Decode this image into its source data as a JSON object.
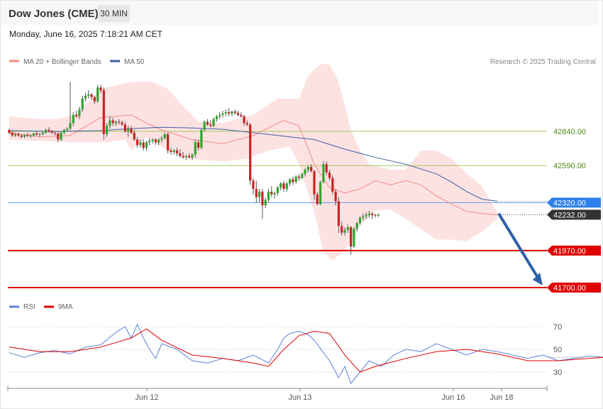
{
  "header": {
    "title": "Dow Jones (CME)",
    "interval": "30 MIN",
    "datetime": "Monday, June 16, 2025 7:18:21 AM CET"
  },
  "legend": [
    {
      "label": "MA 20 + Bollinger Bands",
      "color": "#f28b82"
    },
    {
      "label": "MA 50",
      "color": "#3b5fa8"
    }
  ],
  "copyright": "Research © 2025 Trading Central",
  "rsi_legend": [
    {
      "label": "RSI",
      "color": "#5b82d6"
    },
    {
      "label": "9MA",
      "color": "#e00000"
    }
  ],
  "chart_data": {
    "type": "candlestick",
    "price_ylim": [
      41680,
      43300
    ],
    "x_tick_labels": [
      {
        "label": "Jun 12",
        "index": 45
      },
      {
        "label": "Jun 13",
        "index": 95
      },
      {
        "label": "Jun 16",
        "index": 145
      },
      {
        "label": "Jun 18",
        "index": 161
      }
    ],
    "levels": [
      {
        "label": "42840.00",
        "value": 42840,
        "color": "#8dbd3a",
        "text_color": "#4e8a12",
        "style": "thin"
      },
      {
        "label": "42590.00",
        "value": 42590,
        "color": "#8dbd3a",
        "text_color": "#4e8a12",
        "style": "thin"
      },
      {
        "label": "42320.00",
        "value": 42320,
        "color": "#3d7fe0",
        "box": "#2f80ed",
        "style": "thin"
      },
      {
        "label": "42232.00",
        "value": 42232,
        "color": "#444444",
        "box": "#333333",
        "style": "dotted"
      },
      {
        "label": "41970.00",
        "value": 41970,
        "color": "#e00000",
        "box": "#e00000",
        "style": "thick"
      },
      {
        "label": "41700.00",
        "value": 41700,
        "color": "#e00000",
        "box": "#e00000",
        "style": "thick"
      }
    ],
    "projection": {
      "from_index": 159,
      "from": 42240,
      "to_index": 175,
      "to": 41700,
      "color": "#2f5fa8"
    },
    "ma50": [
      [
        0,
        42845
      ],
      [
        15,
        42840
      ],
      [
        30,
        42845
      ],
      [
        40,
        42860
      ],
      [
        50,
        42870
      ],
      [
        60,
        42865
      ],
      [
        70,
        42855
      ],
      [
        80,
        42830
      ],
      [
        90,
        42805
      ],
      [
        100,
        42780
      ],
      [
        110,
        42710
      ],
      [
        120,
        42650
      ],
      [
        130,
        42600
      ],
      [
        140,
        42530
      ],
      [
        145,
        42470
      ],
      [
        150,
        42400
      ],
      [
        155,
        42345
      ],
      [
        160,
        42330
      ]
    ],
    "ma20": [
      [
        0,
        42830
      ],
      [
        10,
        42800
      ],
      [
        20,
        42810
      ],
      [
        30,
        42940
      ],
      [
        40,
        42960
      ],
      [
        45,
        42900
      ],
      [
        50,
        42850
      ],
      [
        60,
        42780
      ],
      [
        70,
        42750
      ],
      [
        80,
        42810
      ],
      [
        90,
        42920
      ],
      [
        95,
        42880
      ],
      [
        100,
        42600
      ],
      [
        105,
        42430
      ],
      [
        110,
        42390
      ],
      [
        115,
        42420
      ],
      [
        120,
        42480
      ],
      [
        125,
        42450
      ],
      [
        130,
        42480
      ],
      [
        135,
        42450
      ],
      [
        140,
        42370
      ],
      [
        145,
        42310
      ],
      [
        150,
        42255
      ],
      [
        155,
        42240
      ],
      [
        160,
        42230
      ]
    ],
    "bollinger_upper": [
      [
        0,
        42950
      ],
      [
        10,
        42930
      ],
      [
        15,
        42930
      ],
      [
        22,
        42960
      ],
      [
        30,
        43150
      ],
      [
        40,
        43200
      ],
      [
        47,
        43200
      ],
      [
        52,
        43150
      ],
      [
        58,
        43000
      ],
      [
        62,
        42910
      ],
      [
        70,
        42900
      ],
      [
        80,
        42960
      ],
      [
        88,
        43080
      ],
      [
        95,
        43080
      ],
      [
        98,
        43250
      ],
      [
        102,
        43330
      ],
      [
        105,
        43330
      ],
      [
        108,
        43200
      ],
      [
        112,
        42850
      ],
      [
        115,
        42700
      ],
      [
        118,
        42600
      ],
      [
        125,
        42560
      ],
      [
        130,
        42560
      ],
      [
        135,
        42700
      ],
      [
        140,
        42700
      ],
      [
        145,
        42640
      ],
      [
        150,
        42530
      ],
      [
        155,
        42440
      ],
      [
        158,
        42320
      ],
      [
        160,
        42250
      ]
    ],
    "bollinger_lower": [
      [
        0,
        42780
      ],
      [
        10,
        42770
      ],
      [
        20,
        42760
      ],
      [
        28,
        42760
      ],
      [
        32,
        42760
      ],
      [
        38,
        42780
      ],
      [
        40,
        42700
      ],
      [
        45,
        42800
      ],
      [
        52,
        42700
      ],
      [
        60,
        42640
      ],
      [
        70,
        42620
      ],
      [
        78,
        42640
      ],
      [
        85,
        42700
      ],
      [
        92,
        42730
      ],
      [
        95,
        42600
      ],
      [
        100,
        42250
      ],
      [
        103,
        41960
      ],
      [
        106,
        41900
      ],
      [
        110,
        41970
      ],
      [
        115,
        42150
      ],
      [
        120,
        42260
      ],
      [
        125,
        42270
      ],
      [
        130,
        42200
      ],
      [
        140,
        42050
      ],
      [
        145,
        42050
      ],
      [
        150,
        42040
      ],
      [
        155,
        42110
      ],
      [
        160,
        42200
      ]
    ],
    "candles": [
      [
        42850,
        42860,
        42820,
        42830
      ],
      [
        42830,
        42840,
        42800,
        42810
      ],
      [
        42810,
        42830,
        42800,
        42820
      ],
      [
        42820,
        42830,
        42800,
        42810
      ],
      [
        42810,
        42820,
        42790,
        42800
      ],
      [
        42800,
        42820,
        42790,
        42815
      ],
      [
        42815,
        42830,
        42800,
        42805
      ],
      [
        42805,
        42820,
        42790,
        42810
      ],
      [
        42810,
        42830,
        42800,
        42825
      ],
      [
        42825,
        42840,
        42810,
        42815
      ],
      [
        42815,
        42830,
        42800,
        42820
      ],
      [
        42820,
        42840,
        42810,
        42830
      ],
      [
        42830,
        42860,
        42820,
        42850
      ],
      [
        42850,
        42870,
        42830,
        42840
      ],
      [
        42840,
        42850,
        42820,
        42830
      ],
      [
        42830,
        42840,
        42810,
        42825
      ],
      [
        42825,
        42840,
        42760,
        42780
      ],
      [
        42780,
        42840,
        42770,
        42830
      ],
      [
        42830,
        42860,
        42820,
        42850
      ],
      [
        42850,
        42870,
        42840,
        42860
      ],
      [
        42860,
        43200,
        42850,
        42900
      ],
      [
        42900,
        42980,
        42880,
        42960
      ],
      [
        42960,
        42990,
        42940,
        42950
      ],
      [
        42950,
        43020,
        42930,
        43000
      ],
      [
        43000,
        43100,
        42980,
        43080
      ],
      [
        43080,
        43120,
        43060,
        43100
      ],
      [
        43100,
        43140,
        43080,
        43110
      ],
      [
        43110,
        43120,
        43070,
        43090
      ],
      [
        43090,
        43100,
        43040,
        43060
      ],
      [
        43060,
        43180,
        43050,
        43160
      ],
      [
        43160,
        43180,
        43120,
        43140
      ],
      [
        43140,
        43160,
        42780,
        42820
      ],
      [
        42820,
        42900,
        42800,
        42880
      ],
      [
        42880,
        42950,
        42860,
        42920
      ],
      [
        42920,
        42940,
        42880,
        42900
      ],
      [
        42900,
        42920,
        42880,
        42910
      ],
      [
        42910,
        42930,
        42890,
        42905
      ],
      [
        42905,
        42920,
        42880,
        42890
      ],
      [
        42890,
        42910,
        42830,
        42840
      ],
      [
        42840,
        42880,
        42800,
        42860
      ],
      [
        42860,
        42880,
        42820,
        42830
      ],
      [
        42830,
        42850,
        42770,
        42780
      ],
      [
        42780,
        42800,
        42720,
        42740
      ],
      [
        42740,
        42780,
        42720,
        42760
      ],
      [
        42760,
        42780,
        42700,
        42720
      ],
      [
        42720,
        42770,
        42700,
        42760
      ],
      [
        42760,
        42790,
        42740,
        42770
      ],
      [
        42770,
        42790,
        42750,
        42780
      ],
      [
        42780,
        42790,
        42740,
        42760
      ],
      [
        42760,
        42790,
        42740,
        42780
      ],
      [
        42780,
        42810,
        42760,
        42790
      ],
      [
        42790,
        42830,
        42780,
        42820
      ],
      [
        42820,
        42830,
        42680,
        42700
      ],
      [
        42700,
        42720,
        42670,
        42690
      ],
      [
        42690,
        42710,
        42670,
        42700
      ],
      [
        42700,
        42720,
        42660,
        42680
      ],
      [
        42680,
        42710,
        42650,
        42660
      ],
      [
        42660,
        42690,
        42640,
        42650
      ],
      [
        42650,
        42670,
        42630,
        42660
      ],
      [
        42660,
        42680,
        42640,
        42650
      ],
      [
        42650,
        42680,
        42630,
        42670
      ],
      [
        42670,
        42780,
        42650,
        42760
      ],
      [
        42760,
        42780,
        42700,
        42720
      ],
      [
        42720,
        42860,
        42710,
        42850
      ],
      [
        42850,
        42920,
        42840,
        42910
      ],
      [
        42910,
        42930,
        42880,
        42890
      ],
      [
        42890,
        42920,
        42870,
        42880
      ],
      [
        42880,
        42940,
        42870,
        42930
      ],
      [
        42930,
        42960,
        42910,
        42950
      ],
      [
        42950,
        42980,
        42930,
        42960
      ],
      [
        42960,
        42990,
        42940,
        42970
      ],
      [
        42970,
        43000,
        42950,
        42980
      ],
      [
        42980,
        43010,
        42950,
        42970
      ],
      [
        42970,
        42990,
        42950,
        42985
      ],
      [
        42985,
        43000,
        42960,
        42975
      ],
      [
        42975,
        42990,
        42950,
        42960
      ],
      [
        42960,
        42980,
        42940,
        42950
      ],
      [
        42950,
        42960,
        42880,
        42900
      ],
      [
        42900,
        42920,
        42880,
        42890
      ],
      [
        42890,
        42900,
        42450,
        42480
      ],
      [
        42480,
        42500,
        42380,
        42420
      ],
      [
        42420,
        42480,
        42320,
        42360
      ],
      [
        42360,
        42420,
        42320,
        42400
      ],
      [
        42400,
        42420,
        42200,
        42300
      ],
      [
        42300,
        42360,
        42280,
        42340
      ],
      [
        42340,
        42420,
        42320,
        42400
      ],
      [
        42400,
        42440,
        42360,
        42380
      ],
      [
        42380,
        42400,
        42350,
        42390
      ],
      [
        42390,
        42440,
        42370,
        42430
      ],
      [
        42430,
        42470,
        42410,
        42460
      ],
      [
        42460,
        42480,
        42400,
        42420
      ],
      [
        42420,
        42470,
        42400,
        42460
      ],
      [
        42460,
        42500,
        42440,
        42490
      ],
      [
        42490,
        42510,
        42450,
        42470
      ],
      [
        42470,
        42520,
        42460,
        42510
      ],
      [
        42510,
        42530,
        42480,
        42500
      ],
      [
        42500,
        42540,
        42490,
        42530
      ],
      [
        42530,
        42570,
        42510,
        42560
      ],
      [
        42560,
        42590,
        42540,
        42580
      ],
      [
        42580,
        42600,
        42540,
        42550
      ],
      [
        42550,
        42560,
        42340,
        42380
      ],
      [
        42380,
        42400,
        42300,
        42310
      ],
      [
        42310,
        42480,
        42300,
        42470
      ],
      [
        42470,
        42620,
        42460,
        42600
      ],
      [
        42600,
        42620,
        42520,
        42540
      ],
      [
        42540,
        42560,
        42480,
        42500
      ],
      [
        42500,
        42520,
        42380,
        42400
      ],
      [
        42400,
        42420,
        42300,
        42330
      ],
      [
        42330,
        42360,
        42100,
        42150
      ],
      [
        42150,
        42180,
        42080,
        42100
      ],
      [
        42100,
        42140,
        42080,
        42120
      ],
      [
        42120,
        42160,
        42100,
        42140
      ],
      [
        42140,
        42150,
        41940,
        42000
      ],
      [
        42000,
        42140,
        41990,
        42130
      ],
      [
        42130,
        42180,
        42110,
        42170
      ],
      [
        42170,
        42220,
        42160,
        42210
      ],
      [
        42210,
        42240,
        42190,
        42220
      ],
      [
        42220,
        42250,
        42200,
        42230
      ],
      [
        42230,
        42260,
        42210,
        42240
      ],
      [
        42240,
        42250,
        42200,
        42230
      ],
      [
        42230,
        42240,
        42210,
        42225
      ],
      [
        42225,
        42240,
        42215,
        42232
      ]
    ],
    "rsi_ylim": [
      15,
      82
    ],
    "rsi_ticks": [
      70,
      50,
      30
    ],
    "rsi": [
      [
        0,
        47
      ],
      [
        5,
        43
      ],
      [
        10,
        47
      ],
      [
        15,
        49
      ],
      [
        20,
        46
      ],
      [
        25,
        52
      ],
      [
        30,
        54
      ],
      [
        35,
        65
      ],
      [
        38,
        70
      ],
      [
        40,
        60
      ],
      [
        42,
        72
      ],
      [
        44,
        60
      ],
      [
        46,
        50
      ],
      [
        48,
        42
      ],
      [
        50,
        55
      ],
      [
        55,
        50
      ],
      [
        60,
        40
      ],
      [
        65,
        38
      ],
      [
        70,
        42
      ],
      [
        75,
        40
      ],
      [
        80,
        45
      ],
      [
        85,
        38
      ],
      [
        88,
        50
      ],
      [
        90,
        60
      ],
      [
        92,
        64
      ],
      [
        95,
        66
      ],
      [
        98,
        63
      ],
      [
        100,
        58
      ],
      [
        105,
        40
      ],
      [
        108,
        25
      ],
      [
        110,
        35
      ],
      [
        112,
        20
      ],
      [
        115,
        30
      ],
      [
        118,
        40
      ],
      [
        122,
        35
      ],
      [
        126,
        45
      ],
      [
        130,
        50
      ],
      [
        135,
        48
      ],
      [
        140,
        55
      ],
      [
        145,
        50
      ],
      [
        150,
        45
      ],
      [
        155,
        50
      ],
      [
        160,
        48
      ],
      [
        165,
        45
      ],
      [
        170,
        42
      ],
      [
        175,
        45
      ],
      [
        180,
        40
      ],
      [
        185,
        42
      ],
      [
        190,
        44
      ],
      [
        195,
        43
      ]
    ],
    "rsi_9ma": [
      [
        0,
        52
      ],
      [
        10,
        48
      ],
      [
        20,
        48
      ],
      [
        30,
        52
      ],
      [
        40,
        60
      ],
      [
        45,
        68
      ],
      [
        50,
        58
      ],
      [
        60,
        45
      ],
      [
        70,
        42
      ],
      [
        80,
        38
      ],
      [
        85,
        35
      ],
      [
        90,
        50
      ],
      [
        95,
        62
      ],
      [
        100,
        66
      ],
      [
        105,
        64
      ],
      [
        110,
        45
      ],
      [
        115,
        30
      ],
      [
        120,
        35
      ],
      [
        130,
        42
      ],
      [
        140,
        48
      ],
      [
        150,
        50
      ],
      [
        160,
        46
      ],
      [
        170,
        40
      ],
      [
        180,
        40
      ],
      [
        190,
        42
      ],
      [
        195,
        43
      ]
    ]
  }
}
